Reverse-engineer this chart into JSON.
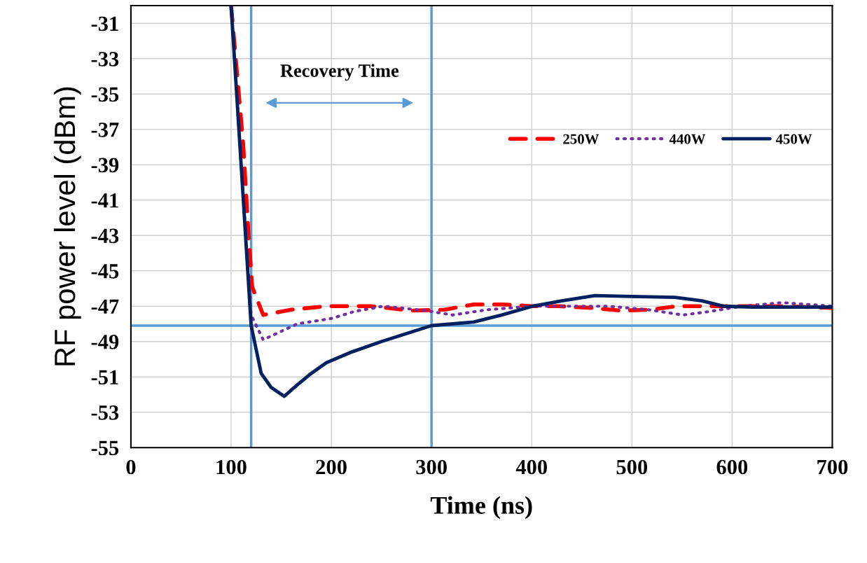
{
  "chart_data": {
    "type": "line",
    "xlabel": "Time (ns)",
    "ylabel": "RF power level (dBm)",
    "xlim": [
      0,
      700
    ],
    "xticks": [
      0,
      100,
      200,
      300,
      400,
      500,
      600,
      700
    ],
    "ylim": [
      -55,
      -30
    ],
    "yticks": [
      -55,
      -53,
      -51,
      -49,
      -47,
      -45,
      -43,
      -41,
      -39,
      -37,
      -35,
      -33,
      -31
    ],
    "grid": true,
    "legend": "top right",
    "series": [
      {
        "name": "250W",
        "color": "#ff0000",
        "line_style": "dashed",
        "x": [
          100,
          112,
          117,
          121,
          132,
          160,
          195,
          240,
          280,
          313,
          342,
          371,
          400,
          427,
          460,
          489,
          519,
          545,
          578,
          610,
          650,
          700
        ],
        "values": [
          -30,
          -37.8,
          -42.6,
          -45.9,
          -47.5,
          -47.2,
          -47.0,
          -47.0,
          -47.25,
          -47.2,
          -46.9,
          -46.9,
          -47.0,
          -47.0,
          -47.1,
          -47.25,
          -47.2,
          -47.0,
          -47.0,
          -47.0,
          -47.0,
          -47.1
        ]
      },
      {
        "name": "440W",
        "color": "#7030a0",
        "line_style": "dotted",
        "x": [
          100,
          110,
          120,
          132,
          166,
          200,
          223,
          252,
          294,
          321,
          356,
          401,
          440,
          476,
          516,
          551,
          578,
          610,
          650,
          700
        ],
        "values": [
          -30,
          -39,
          -47.5,
          -48.9,
          -48.0,
          -47.7,
          -47.3,
          -47.0,
          -47.25,
          -47.5,
          -47.2,
          -47.0,
          -47.0,
          -47.0,
          -47.2,
          -47.5,
          -47.3,
          -47.0,
          -46.8,
          -47.0
        ]
      },
      {
        "name": "450W",
        "color": "#002060",
        "line_style": "solid",
        "x": [
          100,
          110,
          120,
          130,
          140,
          153,
          165,
          180,
          195,
          220,
          250,
          300,
          342,
          370,
          401,
          430,
          463,
          500,
          543,
          570,
          591,
          620,
          660,
          700
        ],
        "values": [
          -30,
          -39,
          -48.1,
          -50.8,
          -51.6,
          -52.1,
          -51.5,
          -50.8,
          -50.2,
          -49.6,
          -49.0,
          -48.1,
          -47.9,
          -47.5,
          -47.0,
          -46.7,
          -46.4,
          -46.45,
          -46.5,
          -46.7,
          -47.0,
          -47.05,
          -47.05,
          -47.05
        ]
      }
    ],
    "ref_lines": [
      {
        "axis": "x",
        "value": 120,
        "color": "#5b9bd5"
      },
      {
        "axis": "x",
        "value": 300,
        "color": "#5b9bd5"
      },
      {
        "axis": "y",
        "value": -48.1,
        "color": "#5b9bd5"
      }
    ],
    "annotations": [
      "Recovery Time"
    ]
  }
}
